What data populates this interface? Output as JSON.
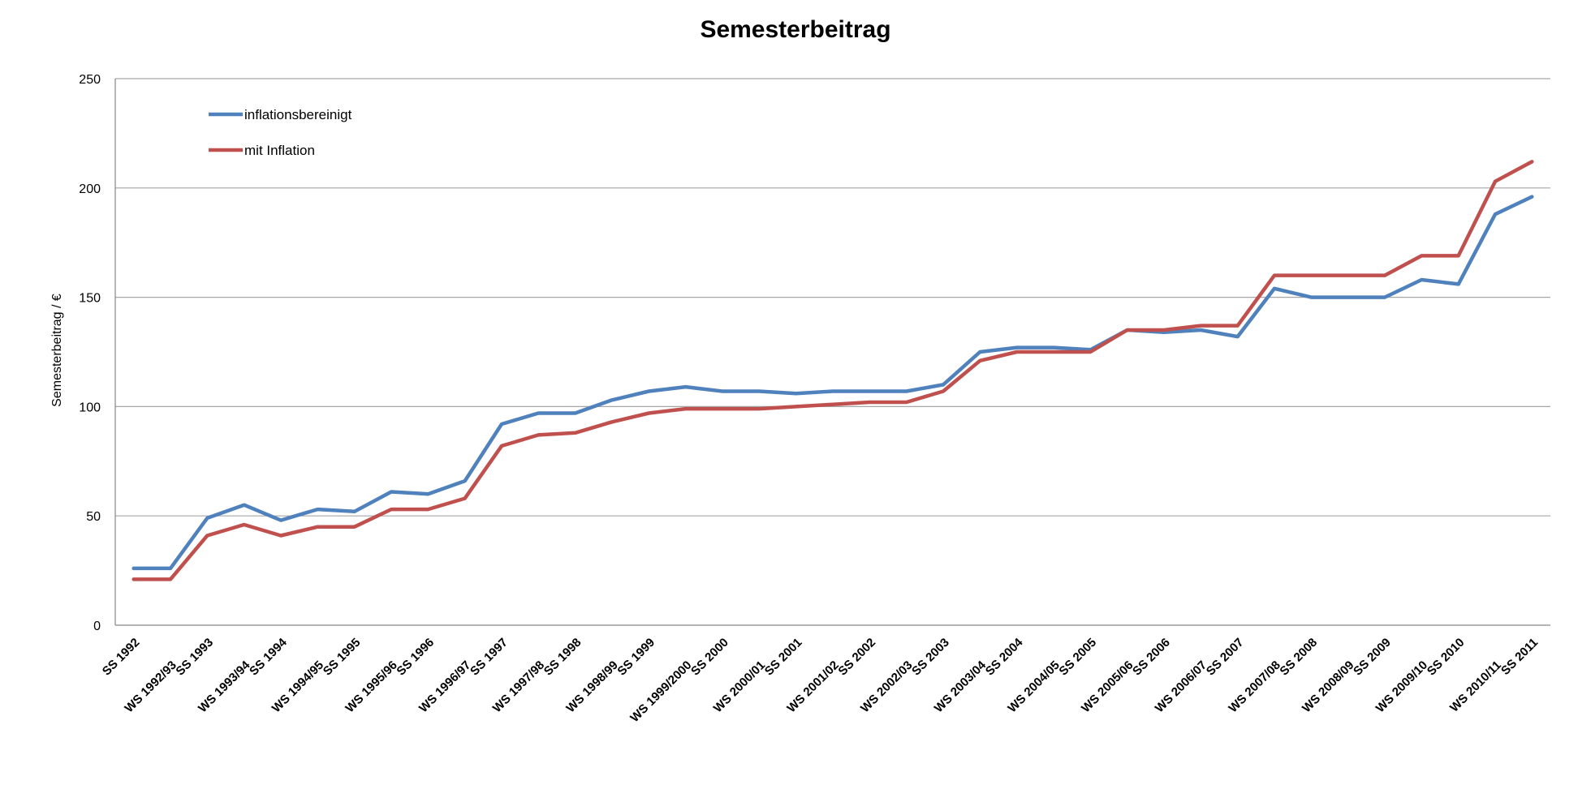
{
  "chart_data": {
    "type": "line",
    "title": "Semesterbeitrag",
    "xlabel": "",
    "ylabel": "Semesterbeitrag / €",
    "ylim": [
      0,
      250
    ],
    "yticks": [
      0,
      50,
      100,
      150,
      200,
      250
    ],
    "grid": true,
    "legend": "top-left",
    "categories": [
      "SS 1992",
      "WS 1992/93",
      "SS 1993",
      "WS 1993/94",
      "SS 1994",
      "WS 1994/95",
      "SS 1995",
      "WS 1995/96",
      "SS 1996",
      "WS 1996/97",
      "SS 1997",
      "WS 1997/98",
      "SS 1998",
      "WS 1998/99",
      "SS 1999",
      "WS 1999/2000",
      "SS 2000",
      "WS 2000/01",
      "SS 2001",
      "WS 2001/02",
      "SS 2002",
      "WS 2002/03",
      "SS 2003",
      "WS 2003/04",
      "SS 2004",
      "WS 2004/05",
      "SS 2005",
      "WS 2005/06",
      "SS 2006",
      "WS 2006/07",
      "SS 2007",
      "WS 2007/08",
      "SS 2008",
      "WS 2008/09",
      "SS 2009",
      "WS 2009/10",
      "SS 2010",
      "WS 2010/11",
      "SS 2011"
    ],
    "series": [
      {
        "name": "inflationsbereinigt",
        "color": "#4f81bd",
        "values": [
          26,
          26,
          49,
          55,
          48,
          53,
          52,
          61,
          60,
          66,
          92,
          97,
          97,
          103,
          107,
          109,
          107,
          107,
          106,
          107,
          107,
          107,
          110,
          125,
          127,
          127,
          126,
          135,
          134,
          135,
          132,
          154,
          150,
          150,
          150,
          158,
          156,
          188,
          196
        ]
      },
      {
        "name": "mit Inflation",
        "color": "#c0504d",
        "values": [
          21,
          21,
          41,
          46,
          41,
          45,
          45,
          53,
          53,
          58,
          82,
          87,
          88,
          93,
          97,
          99,
          99,
          99,
          100,
          101,
          102,
          102,
          107,
          121,
          125,
          125,
          125,
          135,
          135,
          137,
          137,
          160,
          160,
          160,
          160,
          169,
          169,
          203,
          212
        ]
      }
    ]
  }
}
